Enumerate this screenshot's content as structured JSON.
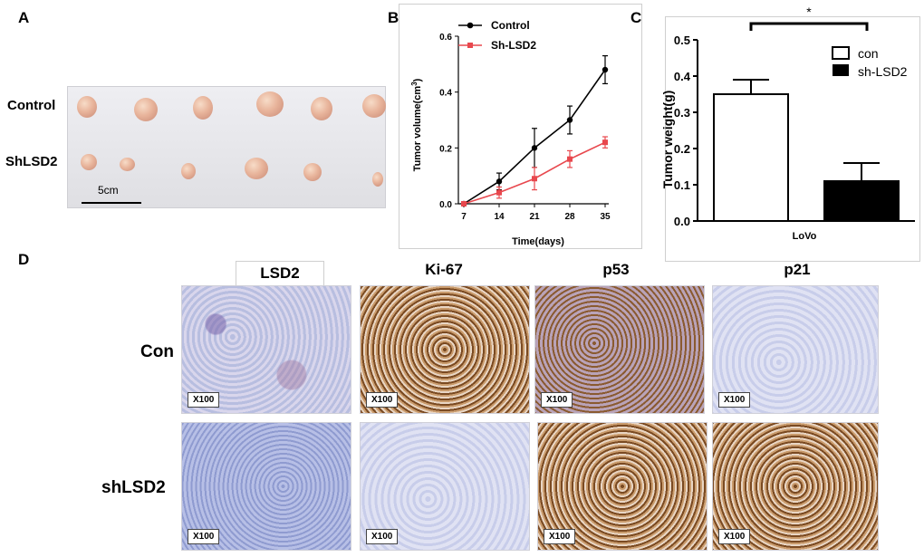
{
  "panels": {
    "a": "A",
    "b": "B",
    "c": "C",
    "d": "D"
  },
  "panel_a": {
    "row_control": "Control",
    "row_shlsd2": "ShLSD2",
    "scale_label": "5cm"
  },
  "chart_data": [
    {
      "type": "line",
      "panel": "B",
      "xlabel": "Time(days)",
      "ylabel_main": "Tumor volume(cm",
      "ylabel_sup": "3",
      "ylabel_end": ")",
      "x": [
        7,
        14,
        21,
        28,
        35
      ],
      "ylim": [
        0,
        0.6
      ],
      "yticks": [
        "0.0",
        "0.2",
        "0.4",
        "0.6"
      ],
      "series": [
        {
          "name": "Control",
          "color": "#000000",
          "values": [
            0,
            0.08,
            0.2,
            0.3,
            0.48
          ],
          "errors": [
            0,
            0.03,
            0.07,
            0.05,
            0.05
          ]
        },
        {
          "name": "Sh-LSD2",
          "color": "#e8484e",
          "values": [
            0,
            0.04,
            0.09,
            0.16,
            0.22
          ],
          "errors": [
            0,
            0.02,
            0.04,
            0.03,
            0.02
          ]
        }
      ]
    },
    {
      "type": "bar",
      "panel": "C",
      "categories": [
        "LoVo"
      ],
      "xlabel": "LoVo",
      "ylabel": "Tumor weight(g)",
      "ylim": [
        0,
        0.5
      ],
      "yticks": [
        "0.0",
        "0.1",
        "0.2",
        "0.3",
        "0.4",
        "0.5"
      ],
      "significance": "*",
      "series": [
        {
          "name": "con",
          "color": "#ffffff",
          "values": [
            0.35
          ],
          "errors": [
            0.04
          ]
        },
        {
          "name": "sh-LSD2",
          "color": "#000000",
          "values": [
            0.11
          ],
          "errors": [
            0.05
          ]
        }
      ]
    }
  ],
  "panel_d": {
    "columns": [
      "LSD2",
      "Ki-67",
      "p53",
      "p21"
    ],
    "rows": [
      "Con",
      "shLSD2"
    ],
    "magnification": "X100"
  }
}
